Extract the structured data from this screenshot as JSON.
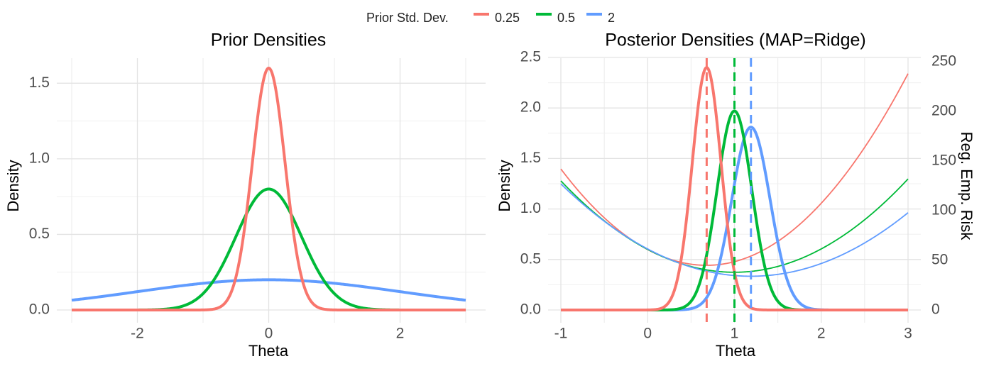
{
  "legend": {
    "title": "Prior Std. Dev.",
    "entries": [
      {
        "label": "0.25",
        "color": "#F8766D"
      },
      {
        "label": "0.5",
        "color": "#00BA38"
      },
      {
        "label": "2",
        "color": "#619CFF"
      }
    ],
    "placement": "top"
  },
  "chart_data": [
    {
      "type": "line",
      "title": "Prior Densities",
      "xlabel": "Theta",
      "ylabel": "Density",
      "xlim": [
        -3,
        3
      ],
      "ylim": [
        0,
        1.6
      ],
      "xticks": [
        -2,
        0,
        2
      ],
      "yticks": [
        0.0,
        0.5,
        1.0,
        1.5
      ],
      "xtick_labels": [
        "-2",
        "0",
        "2"
      ],
      "ytick_labels": [
        "0.0",
        "0.5",
        "1.0",
        "1.5"
      ],
      "grid": true,
      "series": [
        {
          "name": "0.25",
          "color": "#F8766D",
          "distribution": "normal",
          "mean": 0,
          "sd": 0.25,
          "peak": 1.6
        },
        {
          "name": "0.5",
          "color": "#00BA38",
          "distribution": "normal",
          "mean": 0,
          "sd": 0.5,
          "peak": 0.8
        },
        {
          "name": "2",
          "color": "#619CFF",
          "distribution": "normal",
          "mean": 0,
          "sd": 2,
          "peak": 0.2
        }
      ]
    },
    {
      "type": "line",
      "title": "Posterior Densities (MAP=Ridge)",
      "xlabel": "Theta",
      "ylabel": "Density",
      "ylabel_right": "Reg. Emp. Risk",
      "xlim": [
        -1,
        3
      ],
      "ylim": [
        0,
        2.5
      ],
      "ylim_right": [
        0,
        250
      ],
      "xticks": [
        -1,
        0,
        1,
        2,
        3
      ],
      "yticks": [
        0.0,
        0.5,
        1.0,
        1.5,
        2.0,
        2.5
      ],
      "yticks_right": [
        0,
        50,
        100,
        150,
        200,
        250
      ],
      "xtick_labels": [
        "-1",
        "0",
        "1",
        "2",
        "3"
      ],
      "ytick_labels": [
        "0.0",
        "0.5",
        "1.0",
        "1.5",
        "2.0",
        "2.5"
      ],
      "ytick_labels_right": [
        "0",
        "50",
        "100",
        "150",
        "200",
        "250"
      ],
      "grid": true,
      "densities": [
        {
          "name": "0.25",
          "color": "#F8766D",
          "mean": 0.68,
          "sd": 0.166,
          "peak": 2.4
        },
        {
          "name": "0.5",
          "color": "#00BA38",
          "mean": 1.0,
          "sd": 0.2,
          "peak": 1.97
        },
        {
          "name": "2",
          "color": "#619CFF",
          "mean": 1.19,
          "sd": 0.22,
          "peak": 1.81
        }
      ],
      "map_lines": [
        {
          "name": "0.25",
          "color": "#F8766D",
          "x": 0.68
        },
        {
          "name": "0.5",
          "color": "#00BA38",
          "x": 1.0
        },
        {
          "name": "2",
          "color": "#619CFF",
          "x": 1.19
        }
      ],
      "risk_curves": [
        {
          "name": "0.25",
          "color": "#F8766D",
          "min_x": 0.68,
          "min_y": 45,
          "y_at_-1": 142,
          "y_at_3": 238
        },
        {
          "name": "0.5",
          "color": "#00BA38",
          "min_x": 1.0,
          "min_y": 38,
          "y_at_-1": 130,
          "y_at_3": 132
        },
        {
          "name": "2",
          "color": "#619CFF",
          "min_x": 1.19,
          "min_y": 34,
          "y_at_-1": 127,
          "y_at_3": 98
        }
      ]
    }
  ]
}
